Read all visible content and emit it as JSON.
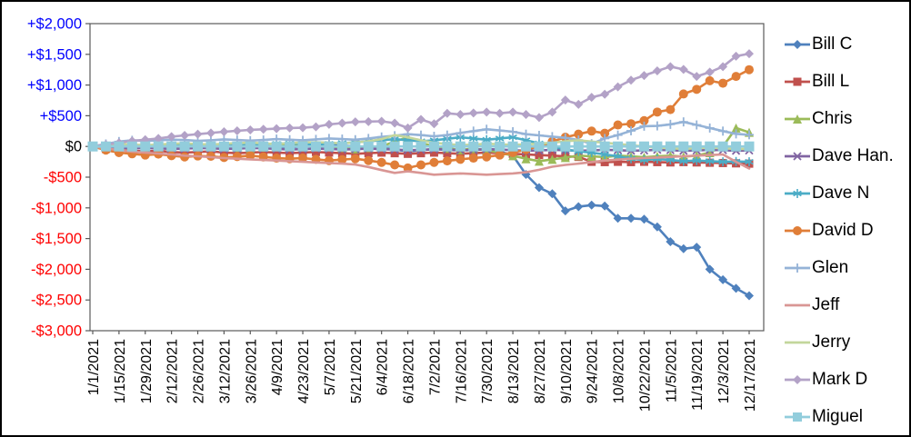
{
  "chart_data": {
    "type": "line",
    "title": "",
    "x_axis": {
      "labels": [
        "1/1/2021",
        "1/15/2021",
        "1/29/2021",
        "2/12/2021",
        "2/26/2021",
        "3/12/2021",
        "3/26/2021",
        "4/9/2021",
        "4/23/2021",
        "5/7/2021",
        "5/21/2021",
        "6/4/2021",
        "6/18/2021",
        "7/2/2021",
        "7/16/2021",
        "7/30/2021",
        "8/13/2021",
        "8/27/2021",
        "9/10/2021",
        "9/24/2021",
        "10/8/2021",
        "10/22/2021",
        "11/5/2021",
        "11/19/2021",
        "12/3/2021",
        "12/17/2021"
      ],
      "points_per_label": 2,
      "label_rotation_deg": -90
    },
    "y_axis": {
      "min": -3000,
      "max": 2000,
      "tick_step": 500,
      "ticks": [
        {
          "label": "+$2,000",
          "value": 2000,
          "color": "#0000FF"
        },
        {
          "label": "+$1,500",
          "value": 1500,
          "color": "#0000FF"
        },
        {
          "label": "+$1,000",
          "value": 1000,
          "color": "#0000FF"
        },
        {
          "label": "+$500",
          "value": 500,
          "color": "#0000FF"
        },
        {
          "label": "$0",
          "value": 0,
          "color": "#000000"
        },
        {
          "label": "-$500",
          "value": -500,
          "color": "#FF0000"
        },
        {
          "label": "-$1,000",
          "value": -1000,
          "color": "#FF0000"
        },
        {
          "label": "-$1,500",
          "value": -1500,
          "color": "#FF0000"
        },
        {
          "label": "-$2,000",
          "value": -2000,
          "color": "#FF0000"
        },
        {
          "label": "-$2,500",
          "value": -2500,
          "color": "#FF0000"
        },
        {
          "label": "-$3,000",
          "value": -3000,
          "color": "#FF0000"
        }
      ]
    },
    "grid": false,
    "legend_position": "right",
    "axis_color": "#5A5A5A",
    "series": [
      {
        "name": "Bill C",
        "color": "#4F81BD",
        "marker": "diamond",
        "marker_size": 5,
        "values": [
          0,
          -10,
          -15,
          -5,
          5,
          15,
          20,
          10,
          0,
          10,
          25,
          15,
          0,
          -10,
          -20,
          -10,
          0,
          15,
          20,
          10,
          0,
          -10,
          -25,
          -50,
          -80,
          -60,
          -45,
          -55,
          -65,
          -55,
          -50,
          -80,
          -150,
          -455,
          -670,
          -770,
          -1050,
          -980,
          -955,
          -970,
          -1170,
          -1170,
          -1185,
          -1310,
          -1550,
          -1665,
          -1640,
          -2000,
          -2170,
          -2310,
          -2430
        ]
      },
      {
        "name": "Bill L",
        "color": "#C0504D",
        "marker": "square",
        "marker_size": 4.5,
        "values": [
          0,
          -40,
          -60,
          -70,
          -80,
          -70,
          -90,
          -100,
          -90,
          -80,
          -100,
          -110,
          -100,
          -90,
          -100,
          -110,
          -100,
          -90,
          -100,
          -110,
          -120,
          -110,
          -100,
          -110,
          -120,
          -110,
          -100,
          -110,
          -120,
          -110,
          -100,
          -110,
          -120,
          -130,
          -140,
          -150,
          -160,
          -170,
          -250,
          -255,
          -250,
          -255,
          -250,
          -255,
          -260,
          -255,
          -260,
          -265,
          -270,
          -275,
          -280
        ]
      },
      {
        "name": "Chris",
        "color": "#9BBB59",
        "marker": "triangle",
        "marker_size": 5,
        "values": [
          0,
          15,
          25,
          10,
          -15,
          -5,
          5,
          20,
          40,
          25,
          5,
          -15,
          -30,
          -10,
          5,
          20,
          35,
          15,
          0,
          -20,
          -40,
          -20,
          0,
          80,
          150,
          60,
          0,
          -30,
          -55,
          -35,
          -60,
          -100,
          -150,
          -200,
          -240,
          -210,
          -180,
          -150,
          -160,
          -175,
          -150,
          -160,
          -175,
          -160,
          -150,
          -165,
          -150,
          -100,
          0,
          300,
          230
        ]
      },
      {
        "name": "Dave Han.",
        "color": "#8064A2",
        "marker": "x",
        "marker_size": 4,
        "values": [
          0,
          -10,
          -20,
          -30,
          -25,
          -30,
          -40,
          -35,
          -25,
          -30,
          -40,
          -35,
          -25,
          -30,
          -40,
          -50,
          -45,
          -35,
          -40,
          -50,
          -45,
          -35,
          -45,
          -50,
          -60,
          -55,
          -45,
          -50,
          -60,
          -55,
          -45,
          -50,
          -60,
          -70,
          -65,
          -55,
          -60,
          -70,
          -65,
          -55,
          -60,
          -70,
          -65,
          -55,
          -60,
          -70,
          -65,
          -55,
          -60,
          -70,
          -65
        ]
      },
      {
        "name": "Dave N",
        "color": "#4BACC6",
        "marker": "star",
        "marker_size": 5,
        "values": [
          0,
          10,
          20,
          15,
          5,
          15,
          25,
          30,
          20,
          10,
          5,
          15,
          25,
          35,
          45,
          50,
          40,
          30,
          45,
          55,
          65,
          85,
          100,
          120,
          100,
          85,
          100,
          125,
          150,
          130,
          110,
          130,
          150,
          100,
          50,
          0,
          -50,
          -80,
          -100,
          -130,
          -160,
          -200,
          -220,
          -205,
          -220,
          -240,
          -230,
          -240,
          -250,
          -245,
          -250
        ]
      },
      {
        "name": "David D",
        "color": "#E07E38",
        "marker": "circle",
        "marker_size": 5,
        "values": [
          0,
          -60,
          -100,
          -120,
          -140,
          -125,
          -150,
          -170,
          -155,
          -160,
          -180,
          -165,
          -150,
          -170,
          -190,
          -200,
          -190,
          -210,
          -230,
          -215,
          -200,
          -230,
          -260,
          -300,
          -350,
          -300,
          -260,
          -235,
          -210,
          -190,
          -170,
          -140,
          -100,
          -50,
          0,
          80,
          150,
          200,
          250,
          215,
          350,
          370,
          420,
          560,
          600,
          855,
          930,
          1070,
          1030,
          1140,
          1250
        ]
      },
      {
        "name": "Glen",
        "color": "#95B3D7",
        "marker": "plus",
        "marker_size": 5,
        "values": [
          0,
          40,
          80,
          100,
          90,
          100,
          110,
          105,
          90,
          100,
          115,
          105,
          95,
          105,
          120,
          110,
          100,
          115,
          130,
          120,
          110,
          130,
          155,
          175,
          200,
          185,
          165,
          185,
          220,
          250,
          280,
          260,
          240,
          200,
          180,
          160,
          140,
          105,
          45,
          130,
          185,
          255,
          330,
          335,
          360,
          400,
          350,
          300,
          250,
          205,
          190
        ]
      },
      {
        "name": "Jeff",
        "color": "#D99694",
        "marker": "none",
        "marker_size": 0,
        "values": [
          0,
          -30,
          -60,
          -85,
          -100,
          -115,
          -130,
          -150,
          -160,
          -175,
          -190,
          -200,
          -210,
          -220,
          -230,
          -240,
          -250,
          -260,
          -270,
          -280,
          -295,
          -335,
          -385,
          -430,
          -405,
          -430,
          -460,
          -450,
          -440,
          -450,
          -460,
          -450,
          -440,
          -420,
          -380,
          -330,
          -300,
          -280,
          -255,
          -230,
          -215,
          -200,
          -190,
          -180,
          -170,
          -160,
          -150,
          -140,
          -130,
          -250,
          -360
        ]
      },
      {
        "name": "Jerry",
        "color": "#C3D69B",
        "marker": "none",
        "marker_size": 0,
        "values": [
          0,
          20,
          40,
          30,
          20,
          30,
          45,
          50,
          40,
          30,
          45,
          55,
          60,
          50,
          40,
          55,
          65,
          70,
          60,
          50,
          65,
          85,
          120,
          185,
          150,
          100,
          60,
          40,
          20,
          30,
          45,
          35,
          25,
          35,
          45,
          60,
          85,
          100,
          80,
          60,
          40,
          20,
          0,
          -20,
          -30,
          -40,
          -30,
          -20,
          -30,
          -40,
          -40
        ]
      },
      {
        "name": "Mark D",
        "color": "#B3A2C7",
        "marker": "diamond",
        "marker_size": 5,
        "values": [
          0,
          30,
          60,
          90,
          110,
          130,
          160,
          180,
          200,
          220,
          240,
          255,
          270,
          280,
          290,
          300,
          305,
          320,
          360,
          380,
          400,
          405,
          410,
          380,
          300,
          440,
          370,
          540,
          520,
          545,
          560,
          540,
          560,
          520,
          470,
          560,
          755,
          685,
          800,
          850,
          970,
          1080,
          1155,
          1230,
          1300,
          1255,
          1140,
          1210,
          1300,
          1470,
          1510
        ]
      },
      {
        "name": "Miguel",
        "color": "#92CDDC",
        "marker": "square",
        "marker_size": 5.5,
        "values": [
          0,
          0,
          0,
          0,
          0,
          0,
          0,
          0,
          0,
          0,
          0,
          0,
          0,
          0,
          0,
          0,
          0,
          0,
          0,
          0,
          0,
          0,
          0,
          0,
          0,
          0,
          0,
          0,
          0,
          0,
          0,
          0,
          0,
          0,
          0,
          0,
          0,
          0,
          0,
          0,
          0,
          0,
          0,
          0,
          0,
          0,
          0,
          0,
          0,
          0,
          0
        ]
      }
    ]
  }
}
